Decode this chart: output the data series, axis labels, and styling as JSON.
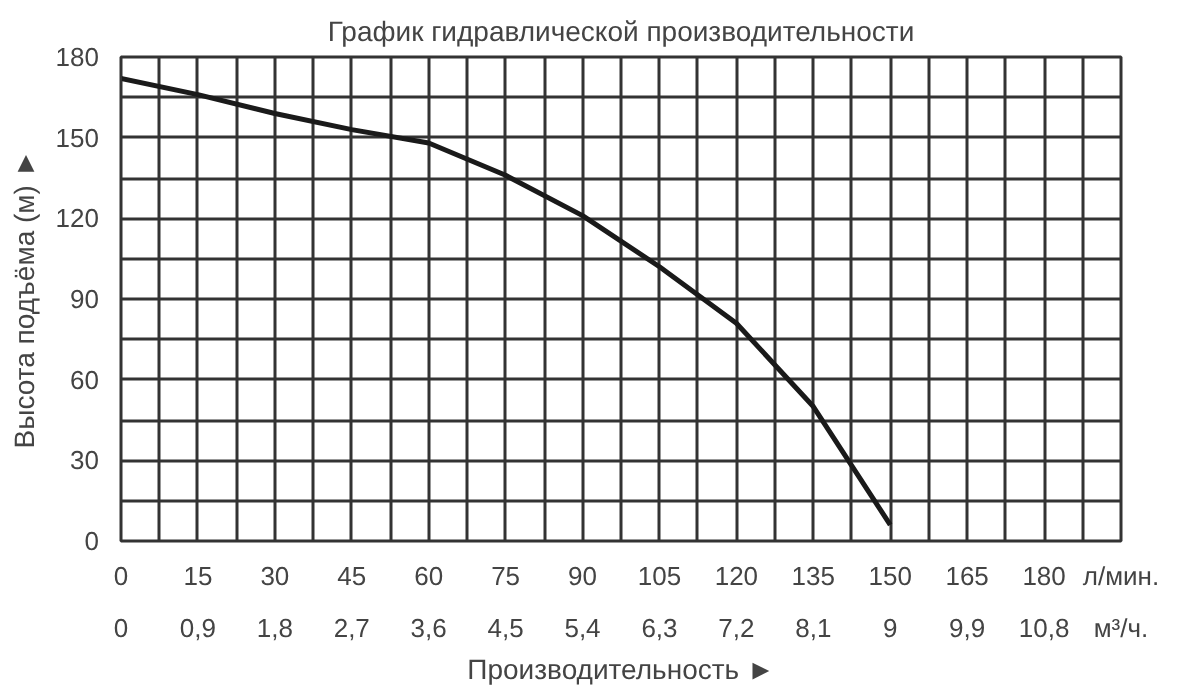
{
  "chart_data": {
    "type": "line",
    "title": "График гидравлической производительности",
    "xlabel": "Производительность ►",
    "ylabel": "Высота подъёма (м) ►",
    "x": [
      0,
      15,
      30,
      45,
      60,
      75,
      90,
      105,
      120,
      135,
      150
    ],
    "series": [
      {
        "color": "#1a1a1a",
        "values": [
          172,
          166,
          159,
          153,
          148,
          136,
          121,
          102,
          81,
          50,
          6
        ]
      }
    ],
    "xlim": [
      0,
      195
    ],
    "ylim": [
      0,
      180
    ],
    "xticks": [
      0,
      {
        "value": 7.5,
        "label": null
      },
      15,
      {
        "value": 22.5,
        "label": null
      },
      30,
      {
        "value": 37.5,
        "label": null
      },
      45,
      {
        "value": 52.5,
        "label": null
      },
      60,
      {
        "value": 67.5,
        "label": null
      },
      75,
      {
        "value": 82.5,
        "label": null
      },
      90,
      {
        "value": 97.5,
        "label": null
      },
      105,
      {
        "value": 112.5,
        "label": null
      },
      120,
      {
        "value": 127.5,
        "label": null
      },
      135,
      {
        "value": 142.5,
        "label": null
      },
      150,
      {
        "value": 157.5,
        "label": null
      },
      165,
      {
        "value": 172.5,
        "label": null
      },
      180,
      {
        "value": 187.5,
        "label": null
      },
      {
        "value": 195,
        "label": "л/мин."
      }
    ],
    "yticks": [
      0,
      {
        "value": 15,
        "label": null
      },
      30,
      {
        "value": 45,
        "label": null
      },
      60,
      {
        "value": 75,
        "label": null
      },
      90,
      {
        "value": 105,
        "label": null
      },
      120,
      {
        "value": 135,
        "label": null
      },
      150,
      {
        "value": 165,
        "label": null
      },
      180
    ],
    "x2lim": [
      0,
      11.7
    ],
    "x2ticks": [
      0,
      {
        "value": 0.9,
        "label": "0,9"
      },
      {
        "value": 1.8,
        "label": "1,8"
      },
      {
        "value": 2.7,
        "label": "2,7"
      },
      {
        "value": 3.6,
        "label": "3,6"
      },
      {
        "value": 4.5,
        "label": "4,5"
      },
      {
        "value": 5.4,
        "label": "5,4"
      },
      {
        "value": 6.3,
        "label": "6,3"
      },
      {
        "value": 7.2,
        "label": "7,2"
      },
      {
        "value": 8.1,
        "label": "8,1"
      },
      9,
      {
        "value": 9.9,
        "label": "9,9"
      },
      {
        "value": 10.8,
        "label": "10,8"
      },
      {
        "value": 11.7,
        "label": "м³/ч."
      }
    ],
    "grid": true,
    "marker": "none",
    "line_style": "solid"
  }
}
